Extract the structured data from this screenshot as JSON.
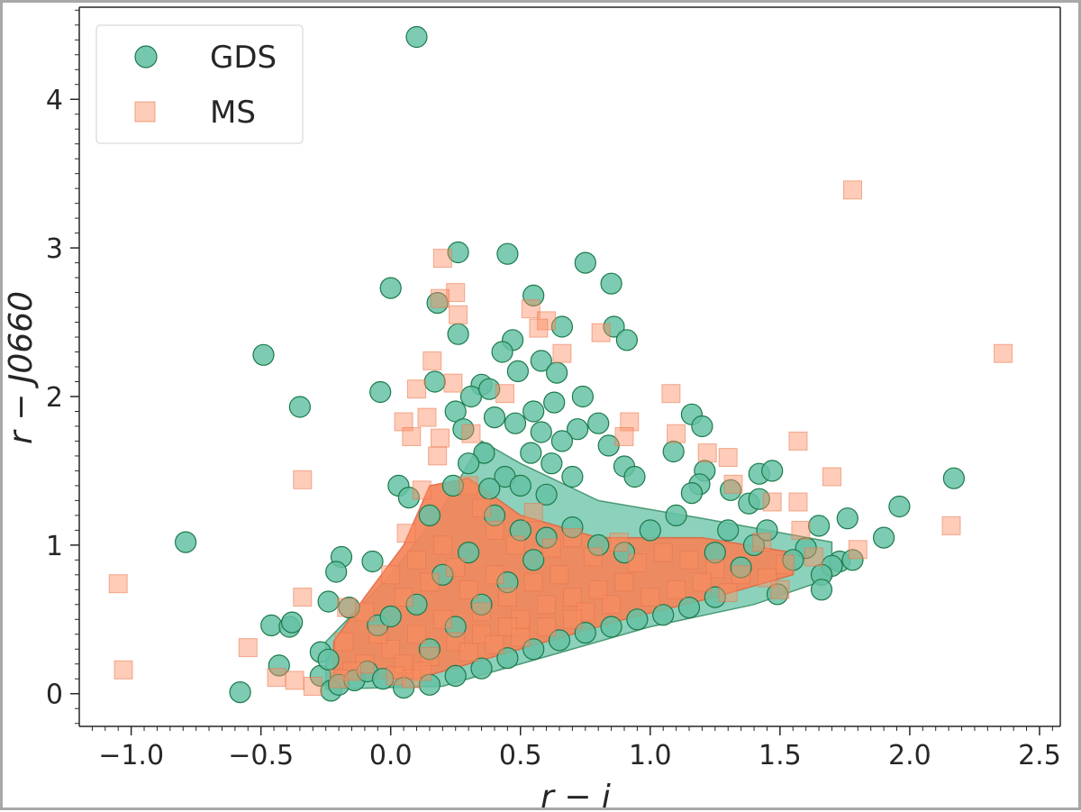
{
  "chart_data": {
    "type": "scatter",
    "xlabel": "r − i",
    "ylabel": "r − J0660",
    "xlim": [
      -1.2,
      2.58
    ],
    "ylim": [
      -0.22,
      4.62
    ],
    "xticks": [
      "−1.0",
      "−0.5",
      "0.0",
      "0.5",
      "1.0",
      "1.5",
      "2.0",
      "2.5"
    ],
    "xtick_values": [
      -1.0,
      -0.5,
      0.0,
      0.5,
      1.0,
      1.5,
      2.0,
      2.5
    ],
    "yticks": [
      "0",
      "1",
      "2",
      "3",
      "4"
    ],
    "ytick_values": [
      0,
      1,
      2,
      3,
      4
    ],
    "grid": false,
    "legend": {
      "placement": "top-left"
    },
    "series": [
      {
        "name": "GDS",
        "marker": "circle",
        "color": "#66c2a5",
        "edge_color": "#1b7a4a",
        "points": [
          [
            0.1,
            4.42
          ],
          [
            0.26,
            2.97
          ],
          [
            0.45,
            2.96
          ],
          [
            0.75,
            2.9
          ],
          [
            0.85,
            2.76
          ],
          [
            0.0,
            2.73
          ],
          [
            0.55,
            2.68
          ],
          [
            0.18,
            2.63
          ],
          [
            0.66,
            2.47
          ],
          [
            0.86,
            2.47
          ],
          [
            0.26,
            2.42
          ],
          [
            0.47,
            2.38
          ],
          [
            0.91,
            2.38
          ],
          [
            0.43,
            2.3
          ],
          [
            0.58,
            2.24
          ],
          [
            0.17,
            2.1
          ],
          [
            0.49,
            2.17
          ],
          [
            0.35,
            2.08
          ],
          [
            0.64,
            2.16
          ],
          [
            0.31,
            2.0
          ],
          [
            0.38,
            2.05
          ],
          [
            0.74,
            2.0
          ],
          [
            0.55,
            1.9
          ],
          [
            0.63,
            1.96
          ],
          [
            0.4,
            1.86
          ],
          [
            0.25,
            1.9
          ],
          [
            0.28,
            1.78
          ],
          [
            0.48,
            1.82
          ],
          [
            0.58,
            1.76
          ],
          [
            0.72,
            1.78
          ],
          [
            0.8,
            1.82
          ],
          [
            0.66,
            1.7
          ],
          [
            0.84,
            1.67
          ],
          [
            0.54,
            1.62
          ],
          [
            0.36,
            1.62
          ],
          [
            0.3,
            1.55
          ],
          [
            0.62,
            1.55
          ],
          [
            0.44,
            1.46
          ],
          [
            0.5,
            1.4
          ],
          [
            0.9,
            1.53
          ],
          [
            0.94,
            1.46
          ],
          [
            0.7,
            1.46
          ],
          [
            0.38,
            1.38
          ],
          [
            0.24,
            1.4
          ],
          [
            0.6,
            1.34
          ],
          [
            1.16,
            1.88
          ],
          [
            1.2,
            1.8
          ],
          [
            1.09,
            1.63
          ],
          [
            1.21,
            1.5
          ],
          [
            1.19,
            1.41
          ],
          [
            1.42,
            1.48
          ],
          [
            1.47,
            1.5
          ],
          [
            1.16,
            1.35
          ],
          [
            1.31,
            1.37
          ],
          [
            1.38,
            1.28
          ],
          [
            1.42,
            1.31
          ],
          [
            2.17,
            1.45
          ],
          [
            1.96,
            1.26
          ],
          [
            1.76,
            1.18
          ],
          [
            1.9,
            1.05
          ],
          [
            1.65,
            1.13
          ],
          [
            1.6,
            0.98
          ],
          [
            1.73,
            0.89
          ],
          [
            1.78,
            0.9
          ],
          [
            1.7,
            0.86
          ],
          [
            1.66,
            0.8
          ],
          [
            1.66,
            0.7
          ],
          [
            1.49,
            0.67
          ],
          [
            1.35,
            0.85
          ],
          [
            1.25,
            0.95
          ],
          [
            -0.35,
            1.93
          ],
          [
            -0.49,
            2.28
          ],
          [
            -0.04,
            2.03
          ],
          [
            0.03,
            1.4
          ],
          [
            0.07,
            1.32
          ],
          [
            0.15,
            1.2
          ],
          [
            -0.79,
            1.02
          ],
          [
            -0.19,
            0.92
          ],
          [
            -0.21,
            0.82
          ],
          [
            -0.07,
            0.89
          ],
          [
            -0.24,
            0.62
          ],
          [
            -0.16,
            0.58
          ],
          [
            -0.46,
            0.46
          ],
          [
            -0.39,
            0.45
          ],
          [
            -0.38,
            0.48
          ],
          [
            -0.43,
            0.19
          ],
          [
            -0.58,
            0.01
          ],
          [
            -0.27,
            0.28
          ],
          [
            -0.27,
            0.12
          ],
          [
            -0.24,
            0.23
          ],
          [
            -0.23,
            0.02
          ],
          [
            -0.2,
            0.06
          ],
          [
            -0.14,
            0.09
          ],
          [
            -0.09,
            0.15
          ],
          [
            -0.05,
            0.46
          ],
          [
            0.0,
            0.52
          ],
          [
            -0.03,
            0.1
          ],
          [
            0.05,
            0.04
          ],
          [
            0.15,
            0.06
          ],
          [
            0.25,
            0.12
          ],
          [
            0.35,
            0.17
          ],
          [
            0.45,
            0.24
          ],
          [
            0.55,
            0.3
          ],
          [
            0.65,
            0.36
          ],
          [
            0.75,
            0.41
          ],
          [
            0.85,
            0.45
          ],
          [
            0.95,
            0.5
          ],
          [
            1.05,
            0.53
          ],
          [
            1.15,
            0.58
          ],
          [
            1.25,
            0.65
          ],
          [
            0.15,
            0.3
          ],
          [
            0.25,
            0.45
          ],
          [
            0.35,
            0.6
          ],
          [
            0.45,
            0.75
          ],
          [
            0.55,
            0.9
          ],
          [
            0.6,
            1.05
          ],
          [
            0.7,
            1.12
          ],
          [
            0.8,
            1.0
          ],
          [
            0.9,
            0.95
          ],
          [
            1.0,
            1.1
          ],
          [
            1.1,
            1.2
          ],
          [
            1.3,
            1.1
          ],
          [
            1.4,
            1.0
          ],
          [
            0.5,
            1.1
          ],
          [
            0.4,
            1.2
          ],
          [
            0.3,
            0.95
          ],
          [
            0.2,
            0.8
          ],
          [
            0.1,
            0.6
          ],
          [
            1.45,
            1.1
          ],
          [
            1.55,
            0.9
          ]
        ]
      },
      {
        "name": "MS",
        "marker": "square",
        "color": "#fc8d62",
        "edge_color": "#e8734a",
        "points": [
          [
            1.78,
            3.39
          ],
          [
            2.36,
            2.29
          ],
          [
            0.2,
            2.93
          ],
          [
            0.25,
            2.7
          ],
          [
            0.19,
            2.66
          ],
          [
            0.26,
            2.55
          ],
          [
            0.54,
            2.59
          ],
          [
            0.6,
            2.51
          ],
          [
            0.57,
            2.46
          ],
          [
            0.81,
            2.43
          ],
          [
            0.66,
            2.29
          ],
          [
            0.16,
            2.24
          ],
          [
            0.1,
            2.05
          ],
          [
            0.24,
            2.09
          ],
          [
            0.44,
            2.02
          ],
          [
            1.08,
            2.02
          ],
          [
            0.05,
            1.83
          ],
          [
            0.14,
            1.86
          ],
          [
            0.08,
            1.73
          ],
          [
            0.19,
            1.72
          ],
          [
            0.31,
            1.75
          ],
          [
            0.92,
            1.83
          ],
          [
            0.9,
            1.73
          ],
          [
            1.1,
            1.75
          ],
          [
            1.22,
            1.62
          ],
          [
            1.3,
            1.59
          ],
          [
            1.57,
            1.7
          ],
          [
            1.7,
            1.46
          ],
          [
            1.32,
            1.41
          ],
          [
            1.47,
            1.29
          ],
          [
            1.57,
            1.29
          ],
          [
            2.16,
            1.13
          ],
          [
            1.58,
            1.1
          ],
          [
            1.43,
            1.02
          ],
          [
            1.8,
            0.97
          ],
          [
            1.63,
            0.92
          ],
          [
            1.52,
            0.87
          ],
          [
            -0.34,
            1.44
          ],
          [
            -1.05,
            0.74
          ],
          [
            -1.03,
            0.16
          ],
          [
            -0.55,
            0.31
          ],
          [
            -0.34,
            0.65
          ],
          [
            -0.17,
            0.58
          ],
          [
            -0.3,
            0.05
          ],
          [
            -0.37,
            0.09
          ],
          [
            -0.44,
            0.11
          ],
          [
            0.06,
            1.08
          ],
          [
            0.12,
            1.37
          ],
          [
            0.18,
            1.6
          ],
          [
            0.3,
            1.4
          ],
          [
            0.35,
            1.25
          ],
          [
            0.4,
            1.1
          ],
          [
            0.48,
            1.0
          ],
          [
            0.55,
            1.22
          ],
          [
            0.62,
            0.98
          ],
          [
            0.7,
            1.05
          ],
          [
            0.78,
            0.92
          ],
          [
            0.88,
            1.02
          ],
          [
            0.95,
            0.88
          ],
          [
            1.05,
            0.95
          ],
          [
            1.15,
            0.9
          ],
          [
            1.25,
            0.84
          ],
          [
            1.35,
            0.8
          ],
          [
            1.45,
            0.78
          ],
          [
            1.5,
            0.7
          ],
          [
            0.0,
            0.8
          ],
          [
            0.05,
            0.65
          ],
          [
            0.1,
            0.9
          ],
          [
            0.15,
            0.75
          ],
          [
            0.2,
            1.0
          ],
          [
            0.25,
            0.85
          ],
          [
            0.3,
            0.7
          ],
          [
            0.35,
            0.55
          ],
          [
            0.4,
            0.8
          ],
          [
            0.45,
            0.65
          ],
          [
            0.5,
            0.5
          ],
          [
            0.55,
            0.75
          ],
          [
            0.6,
            0.6
          ],
          [
            0.65,
            0.8
          ],
          [
            0.7,
            0.65
          ],
          [
            0.75,
            0.55
          ],
          [
            0.8,
            0.7
          ],
          [
            0.85,
            0.6
          ],
          [
            0.9,
            0.75
          ],
          [
            1.0,
            0.65
          ],
          [
            1.1,
            0.7
          ],
          [
            1.2,
            0.75
          ],
          [
            1.3,
            0.68
          ],
          [
            0.0,
            0.3
          ],
          [
            0.05,
            0.2
          ],
          [
            0.1,
            0.4
          ],
          [
            0.15,
            0.25
          ],
          [
            0.2,
            0.5
          ],
          [
            0.25,
            0.35
          ],
          [
            0.3,
            0.28
          ],
          [
            0.35,
            0.4
          ],
          [
            0.4,
            0.33
          ],
          [
            0.45,
            0.45
          ],
          [
            0.5,
            0.38
          ],
          [
            0.6,
            0.45
          ],
          [
            0.7,
            0.5
          ],
          [
            -0.1,
            0.2
          ],
          [
            -0.15,
            0.15
          ],
          [
            -0.2,
            0.1
          ],
          [
            -0.05,
            0.4
          ],
          [
            -0.1,
            0.55
          ],
          [
            -0.18,
            0.35
          ],
          [
            0.02,
            0.12
          ],
          [
            0.08,
            0.1
          ],
          [
            0.12,
            0.15
          ]
        ]
      }
    ]
  }
}
